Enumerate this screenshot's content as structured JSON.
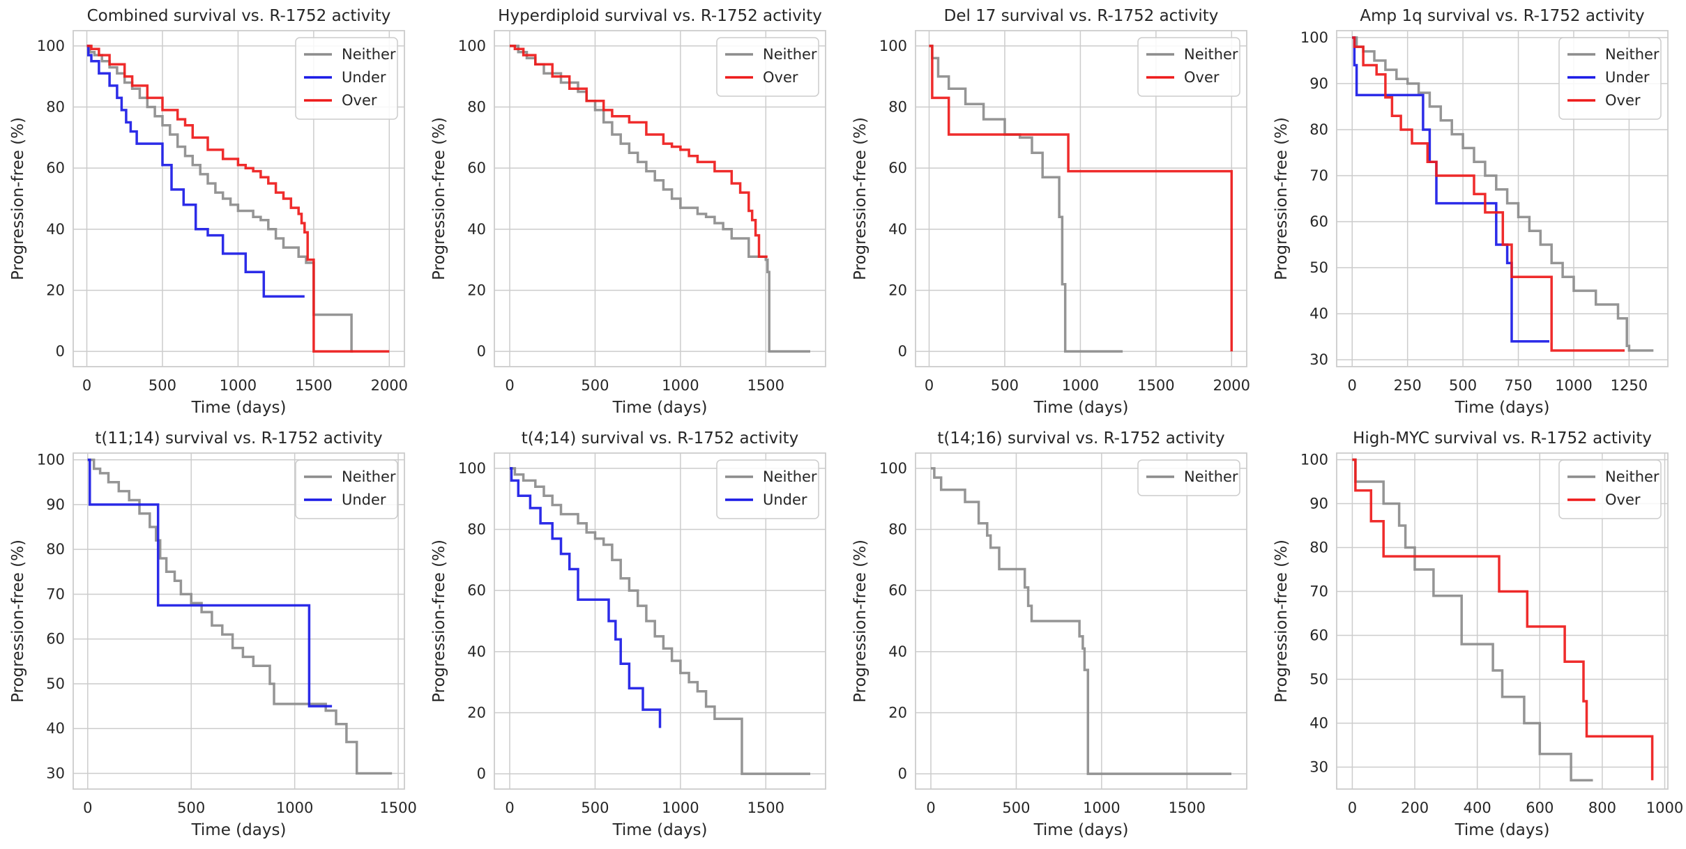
{
  "figure": {
    "xlabel": "Time (days)",
    "ylabel": "Progression-free (%)"
  },
  "colors": {
    "Neither": "#8c8c8c",
    "Under": "#1a1ae6",
    "Over": "#ee1a1a",
    "grid": "#cccccc",
    "frame": "#cccccc"
  },
  "chart_data": [
    {
      "type": "line",
      "step": true,
      "title": "Combined survival vs. R-1752 activity",
      "xlabel": "Time (days)",
      "ylabel": "Progression-free (%)",
      "xlim": [
        -90,
        2100
      ],
      "ylim": [
        -5,
        105
      ],
      "xticks": [
        0,
        500,
        1000,
        1500,
        2000
      ],
      "yticks": [
        0,
        20,
        40,
        60,
        80,
        100
      ],
      "legend": "top-right",
      "grid": true,
      "series": [
        {
          "name": "Neither",
          "x": [
            0,
            20,
            50,
            100,
            150,
            200,
            250,
            300,
            350,
            400,
            450,
            500,
            550,
            600,
            650,
            700,
            750,
            800,
            850,
            900,
            950,
            1000,
            1100,
            1150,
            1200,
            1250,
            1300,
            1400,
            1450,
            1500,
            1750,
            1760
          ],
          "y": [
            100,
            98,
            97,
            95,
            93,
            91,
            88,
            86,
            83,
            80,
            77,
            74,
            71,
            67,
            64,
            61,
            58,
            55,
            52,
            50,
            48,
            46,
            44,
            43,
            40,
            37,
            34,
            31,
            29,
            12,
            0,
            0
          ]
        },
        {
          "name": "Under",
          "x": [
            0,
            10,
            30,
            80,
            150,
            200,
            230,
            260,
            290,
            330,
            500,
            560,
            640,
            720,
            800,
            900,
            1050,
            1170,
            1440
          ],
          "y": [
            100,
            97,
            95,
            91,
            87,
            83,
            79,
            75,
            72,
            68,
            61,
            53,
            48,
            40,
            38,
            32,
            26,
            18,
            18
          ]
        },
        {
          "name": "Over",
          "x": [
            0,
            30,
            80,
            150,
            250,
            300,
            400,
            500,
            600,
            650,
            700,
            800,
            900,
            1000,
            1050,
            1100,
            1150,
            1200,
            1250,
            1300,
            1350,
            1400,
            1420,
            1440,
            1460,
            1500,
            2000
          ],
          "y": [
            100,
            99,
            97,
            94,
            90,
            87,
            83,
            79,
            76,
            74,
            70,
            66,
            63,
            61,
            60,
            59,
            57,
            55,
            52,
            50,
            47,
            45,
            42,
            39,
            30,
            0,
            0
          ]
        }
      ]
    },
    {
      "type": "line",
      "step": true,
      "title": "Hyperdiploid survival vs. R-1752 activity",
      "xlabel": "Time (days)",
      "ylabel": "Progression-free (%)",
      "xlim": [
        -90,
        1850
      ],
      "ylim": [
        -5,
        105
      ],
      "xticks": [
        0,
        500,
        1000,
        1500
      ],
      "yticks": [
        0,
        20,
        40,
        60,
        80,
        100
      ],
      "legend": "top-right",
      "grid": true,
      "series": [
        {
          "name": "Neither",
          "x": [
            0,
            50,
            100,
            150,
            200,
            300,
            400,
            450,
            500,
            550,
            600,
            650,
            700,
            750,
            800,
            850,
            900,
            950,
            1000,
            1100,
            1150,
            1200,
            1250,
            1300,
            1400,
            1500,
            1510,
            1520,
            1760
          ],
          "y": [
            100,
            98,
            96,
            94,
            91,
            88,
            85,
            82,
            79,
            75,
            71,
            68,
            65,
            62,
            59,
            56,
            53,
            50,
            47,
            45,
            44,
            42,
            40,
            37,
            31,
            30,
            26,
            0,
            0
          ]
        },
        {
          "name": "Over",
          "x": [
            0,
            30,
            80,
            150,
            250,
            350,
            450,
            550,
            600,
            700,
            800,
            900,
            950,
            1000,
            1050,
            1100,
            1200,
            1300,
            1350,
            1400,
            1420,
            1440,
            1460,
            1510
          ],
          "y": [
            100,
            99,
            97,
            94,
            90,
            86,
            82,
            79,
            77,
            75,
            71,
            68,
            67,
            66,
            64,
            62,
            59,
            55,
            52,
            46,
            43,
            38,
            31,
            31
          ]
        }
      ]
    },
    {
      "type": "line",
      "step": true,
      "title": "Del 17 survival vs. R-1752 activity",
      "xlabel": "Time (days)",
      "ylabel": "Progression-free (%)",
      "xlim": [
        -90,
        2100
      ],
      "ylim": [
        -5,
        105
      ],
      "xticks": [
        0,
        500,
        1000,
        1500,
        2000
      ],
      "yticks": [
        0,
        20,
        40,
        60,
        80,
        100
      ],
      "legend": "top-right",
      "grid": true,
      "series": [
        {
          "name": "Neither",
          "x": [
            0,
            20,
            60,
            130,
            240,
            360,
            500,
            600,
            680,
            750,
            860,
            880,
            900,
            1280
          ],
          "y": [
            100,
            96,
            90,
            86,
            81,
            76,
            71,
            70,
            65,
            57,
            44,
            22,
            0,
            0
          ]
        },
        {
          "name": "Over",
          "x": [
            0,
            20,
            130,
            910,
            920,
            2000
          ],
          "y": [
            100,
            83,
            71,
            71,
            59,
            0
          ]
        }
      ]
    },
    {
      "type": "line",
      "step": true,
      "title": "Amp 1q survival vs. R-1752 activity",
      "xlabel": "Time (days)",
      "ylabel": "Progression-free (%)",
      "xlim": [
        -70,
        1425
      ],
      "ylim": [
        28.5,
        101.5
      ],
      "xticks": [
        0,
        250,
        500,
        750,
        1000,
        1250
      ],
      "yticks": [
        30,
        40,
        50,
        60,
        70,
        80,
        90,
        100
      ],
      "legend": "top-right",
      "grid": true,
      "series": [
        {
          "name": "Neither",
          "x": [
            0,
            20,
            50,
            100,
            150,
            200,
            250,
            300,
            350,
            400,
            450,
            500,
            550,
            600,
            650,
            700,
            750,
            800,
            850,
            900,
            950,
            1000,
            1100,
            1200,
            1240,
            1250,
            1360
          ],
          "y": [
            100,
            98,
            97,
            95,
            93,
            91,
            90,
            88,
            85,
            82,
            79,
            76,
            73,
            70,
            67,
            64,
            61,
            58,
            55,
            51,
            48,
            45,
            42,
            39,
            33,
            32,
            32
          ]
        },
        {
          "name": "Under",
          "x": [
            0,
            10,
            20,
            300,
            320,
            350,
            380,
            590,
            650,
            700,
            720,
            890
          ],
          "y": [
            100,
            94,
            87.5,
            87.5,
            80,
            73,
            64,
            64,
            55,
            51,
            34,
            34
          ]
        },
        {
          "name": "Over",
          "x": [
            0,
            10,
            50,
            110,
            150,
            180,
            220,
            270,
            300,
            340,
            380,
            420,
            490,
            550,
            600,
            650,
            680,
            720,
            780,
            850,
            900,
            1230
          ],
          "y": [
            100,
            98,
            94,
            92,
            87,
            83,
            80,
            77,
            77,
            73,
            70,
            70,
            70,
            66,
            62,
            62,
            55,
            48,
            48,
            48,
            32,
            32
          ]
        }
      ]
    },
    {
      "type": "line",
      "step": true,
      "title": "t(11;14) survival vs. R-1752 activity",
      "xlabel": "Time (days)",
      "ylabel": "Progression-free (%)",
      "xlim": [
        -70,
        1530
      ],
      "ylim": [
        26.5,
        101.5
      ],
      "xticks": [
        0,
        500,
        1000,
        1500
      ],
      "yticks": [
        30,
        40,
        50,
        60,
        70,
        80,
        90,
        100
      ],
      "legend": "top-right",
      "grid": true,
      "series": [
        {
          "name": "Neither",
          "x": [
            0,
            30,
            60,
            100,
            150,
            200,
            250,
            300,
            330,
            350,
            380,
            420,
            450,
            500,
            550,
            600,
            650,
            700,
            750,
            800,
            880,
            900,
            1100,
            1150,
            1200,
            1250,
            1300,
            1470
          ],
          "y": [
            100,
            98,
            97,
            95,
            93,
            91,
            88,
            85,
            82,
            78,
            75,
            73,
            70,
            68,
            66,
            63,
            61,
            58,
            56,
            54,
            50,
            45.5,
            45.5,
            44,
            41,
            37,
            30,
            30
          ]
        },
        {
          "name": "Under",
          "x": [
            0,
            10,
            330,
            340,
            1060,
            1070,
            1180
          ],
          "y": [
            100,
            90,
            90,
            67.5,
            67.5,
            45,
            45
          ]
        }
      ]
    },
    {
      "type": "line",
      "step": true,
      "title": "t(4;14) survival vs. R-1752 activity",
      "xlabel": "Time (days)",
      "ylabel": "Progression-free (%)",
      "xlim": [
        -90,
        1850
      ],
      "ylim": [
        -5,
        105
      ],
      "xticks": [
        0,
        500,
        1000,
        1500
      ],
      "yticks": [
        0,
        20,
        40,
        60,
        80,
        100
      ],
      "legend": "top-right",
      "grid": true,
      "series": [
        {
          "name": "Neither",
          "x": [
            0,
            30,
            80,
            150,
            200,
            250,
            300,
            400,
            450,
            500,
            550,
            600,
            650,
            700,
            750,
            800,
            850,
            900,
            950,
            1000,
            1050,
            1100,
            1150,
            1200,
            1350,
            1360,
            1760
          ],
          "y": [
            100,
            98,
            96,
            94,
            91,
            88,
            85,
            82,
            79,
            77,
            75,
            70,
            64,
            60,
            55,
            50,
            45,
            41,
            37,
            33,
            30,
            27,
            22,
            18,
            18,
            0,
            0
          ]
        },
        {
          "name": "Under",
          "x": [
            0,
            10,
            50,
            120,
            180,
            250,
            300,
            350,
            400,
            580,
            620,
            650,
            700,
            780,
            880
          ],
          "y": [
            100,
            96,
            91,
            87,
            82,
            77,
            72,
            67,
            57,
            50,
            44,
            36,
            28,
            21,
            15
          ]
        }
      ]
    },
    {
      "type": "line",
      "step": true,
      "title": "t(14;16) survival vs. R-1752 activity",
      "xlabel": "Time (days)",
      "ylabel": "Progression-free (%)",
      "xlim": [
        -90,
        1850
      ],
      "ylim": [
        -5,
        105
      ],
      "xticks": [
        0,
        500,
        1000,
        1500
      ],
      "yticks": [
        0,
        20,
        40,
        60,
        80,
        100
      ],
      "legend": "top-right",
      "grid": true,
      "series": [
        {
          "name": "Neither",
          "x": [
            0,
            20,
            60,
            200,
            280,
            330,
            350,
            400,
            550,
            570,
            590,
            820,
            870,
            890,
            900,
            920,
            1760
          ],
          "y": [
            100,
            97,
            93,
            89,
            82,
            78,
            74,
            67,
            61,
            55,
            50,
            50,
            45,
            41,
            34,
            0,
            0
          ]
        }
      ]
    },
    {
      "type": "line",
      "step": true,
      "title": "High-MYC survival vs. R-1752 activity",
      "xlabel": "Time (days)",
      "ylabel": "Progression-free (%)",
      "xlim": [
        -50,
        1010
      ],
      "ylim": [
        25,
        101.5
      ],
      "xticks": [
        0,
        200,
        400,
        600,
        800,
        1000
      ],
      "yticks": [
        30,
        40,
        50,
        60,
        70,
        80,
        90,
        100
      ],
      "legend": "top-right",
      "grid": true,
      "series": [
        {
          "name": "Neither",
          "x": [
            0,
            10,
            100,
            150,
            170,
            200,
            260,
            350,
            450,
            480,
            550,
            600,
            700,
            710,
            770
          ],
          "y": [
            100,
            95,
            90,
            85,
            80,
            75,
            69,
            58,
            52,
            46,
            40,
            33,
            27,
            27,
            27
          ]
        },
        {
          "name": "Over",
          "x": [
            0,
            10,
            60,
            100,
            260,
            470,
            560,
            680,
            740,
            750,
            960
          ],
          "y": [
            100,
            93,
            86,
            78,
            78,
            70,
            62,
            54,
            45,
            37,
            27
          ]
        }
      ]
    }
  ]
}
